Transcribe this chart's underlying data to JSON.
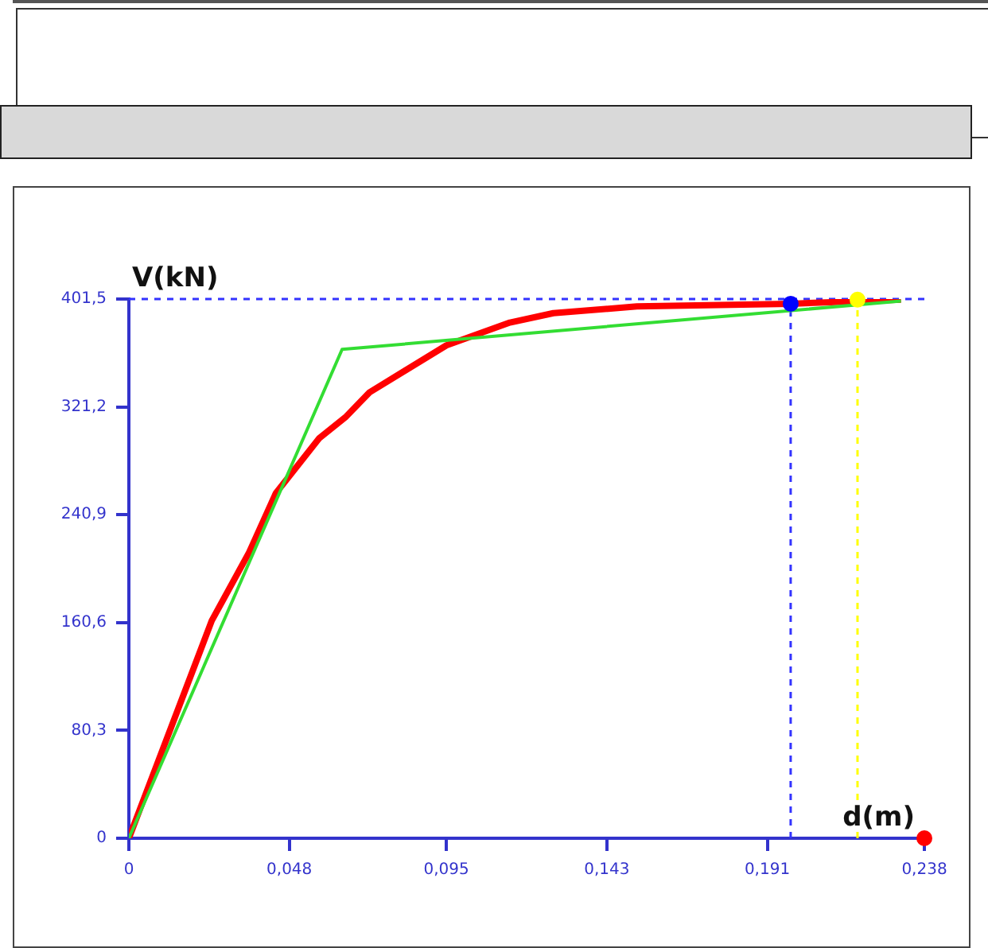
{
  "chart_data": {
    "type": "line",
    "xlabel": "d(m)",
    "ylabel": "V(kN)",
    "xlim": [
      0,
      0.238
    ],
    "ylim": [
      0,
      401.5
    ],
    "xticks": [
      {
        "value": 0,
        "label": "0"
      },
      {
        "value": 0.048,
        "label": "0,048"
      },
      {
        "value": 0.095,
        "label": "0,095"
      },
      {
        "value": 0.143,
        "label": "0,143"
      },
      {
        "value": 0.191,
        "label": "0,191"
      },
      {
        "value": 0.238,
        "label": "0,238"
      }
    ],
    "yticks": [
      {
        "value": 0,
        "label": "0"
      },
      {
        "value": 80.3,
        "label": "80,3"
      },
      {
        "value": 160.6,
        "label": "160,6"
      },
      {
        "value": 240.9,
        "label": "240,9"
      },
      {
        "value": 321.2,
        "label": "321,2"
      },
      {
        "value": 401.5,
        "label": "401,5"
      }
    ],
    "series": [
      {
        "color": "#ff0000",
        "marker": "none",
        "x": [
          0,
          0.0248,
          0.036,
          0.044,
          0.057,
          0.065,
          0.072,
          0.095,
          0.114,
          0.127,
          0.152,
          0.198,
          0.231
        ],
        "values": [
          0,
          162,
          213,
          257,
          298,
          314,
          332,
          367,
          384,
          391,
          396,
          398,
          401
        ]
      },
      {
        "color": "#33dd33",
        "marker": "none",
        "x": [
          0,
          0.0638,
          0.231
        ],
        "values": [
          0,
          364,
          400
        ]
      },
      {
        "type": "scatter",
        "color": "#0000ff",
        "marker": "circle",
        "x": [
          0.198
        ],
        "values": [
          398
        ]
      },
      {
        "type": "scatter",
        "color": "#ffff00",
        "marker": "circle",
        "x": [
          0.218
        ],
        "values": [
          401
        ]
      },
      {
        "type": "scatter",
        "color": "#ff0000",
        "marker": "circle",
        "x": [
          0.238
        ],
        "values": [
          0
        ]
      }
    ],
    "ref_lines": [
      {
        "axis": "x",
        "value": 0.198,
        "color": "#3333ff",
        "line_style": "dashed"
      },
      {
        "axis": "x",
        "value": 0.218,
        "color": "#ffff00",
        "line_style": "dashed"
      },
      {
        "axis": "y",
        "value": 401.5,
        "color": "#3333ff",
        "line_style": "dashed"
      }
    ]
  }
}
